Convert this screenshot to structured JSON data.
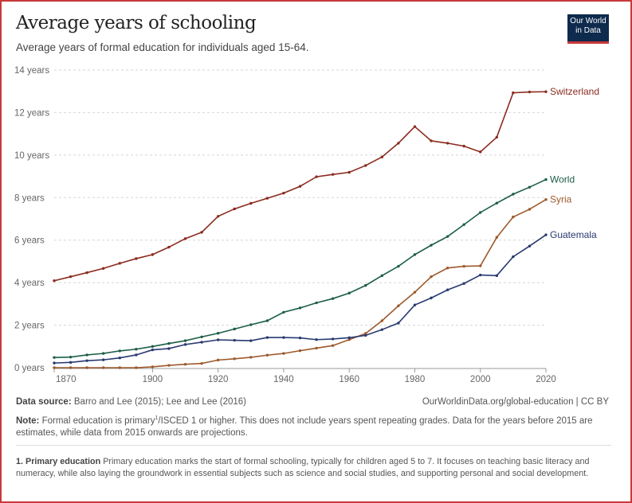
{
  "header": {
    "title": "Average years of schooling",
    "subtitle": "Average years of formal education for individuals aged 15-64.",
    "logo_text": "Our World in Data"
  },
  "footer": {
    "source_label": "Data source:",
    "source_text": "Barro and Lee (2015); Lee and Lee (2016)",
    "url": "OurWorldinData.org/global-education | CC BY",
    "note_label": "Note:",
    "note_text_a": "Formal education is primary",
    "note_sup": "1",
    "note_text_b": "/ISCED 1 or higher. This does not include years spent repeating grades. Data for the years before 2015 are estimates, while data from 2015 onwards are projections.",
    "footnote_label": "1. Primary education",
    "footnote_text": "Primary education marks the start of formal schooling, typically for children aged 5 to 7. It focuses on teaching basic literacy and numeracy, while also laying the groundwork in essential subjects such as science and social studies, and supporting personal and social development."
  },
  "chart_data": {
    "type": "line",
    "title": "Average years of schooling",
    "subtitle": "Average years of formal education for individuals aged 15-64.",
    "xlim": [
      1870,
      2020
    ],
    "ylim": [
      0,
      14
    ],
    "x_ticks": [
      1870,
      1900,
      1920,
      1940,
      1960,
      1980,
      2000,
      2020
    ],
    "y_ticks": [
      {
        "v": 0,
        "label": "0 years"
      },
      {
        "v": 2,
        "label": "2 years"
      },
      {
        "v": 4,
        "label": "4 years"
      },
      {
        "v": 6,
        "label": "6 years"
      },
      {
        "v": 8,
        "label": "8 years"
      },
      {
        "v": 10,
        "label": "10 years"
      },
      {
        "v": 12,
        "label": "12 years"
      },
      {
        "v": 14,
        "label": "14 years"
      }
    ],
    "grid": "horizontal dashed",
    "legend": "inline labels at line ends (right)",
    "x": [
      1870,
      1875,
      1880,
      1885,
      1890,
      1895,
      1900,
      1905,
      1910,
      1915,
      1920,
      1925,
      1930,
      1935,
      1940,
      1945,
      1950,
      1955,
      1960,
      1965,
      1970,
      1975,
      1980,
      1985,
      1990,
      1995,
      2000,
      2005,
      2010,
      2015,
      2020
    ],
    "series": [
      {
        "name": "Switzerland",
        "color": "#8a2b1f",
        "values": [
          4.09,
          4.28,
          4.47,
          4.67,
          4.91,
          5.13,
          5.32,
          5.67,
          6.07,
          6.37,
          7.12,
          7.47,
          7.73,
          7.97,
          8.21,
          8.53,
          8.98,
          9.09,
          9.19,
          9.51,
          9.91,
          10.56,
          11.34,
          10.67,
          10.56,
          10.42,
          10.15,
          10.84,
          12.93,
          12.97,
          12.98
        ]
      },
      {
        "name": "World",
        "color": "#1d5e47",
        "values": [
          0.48,
          0.5,
          0.6,
          0.67,
          0.79,
          0.87,
          1.0,
          1.14,
          1.27,
          1.45,
          1.62,
          1.82,
          2.02,
          2.21,
          2.61,
          2.81,
          3.05,
          3.25,
          3.51,
          3.87,
          4.33,
          4.77,
          5.32,
          5.76,
          6.17,
          6.73,
          7.3,
          7.74,
          8.16,
          8.49,
          8.85
        ]
      },
      {
        "name": "Syria",
        "color": "#9c5a2c",
        "values": [
          0,
          0,
          0,
          0,
          0,
          0,
          0.04,
          0.11,
          0.16,
          0.2,
          0.36,
          0.42,
          0.49,
          0.59,
          0.67,
          0.8,
          0.92,
          1.04,
          1.32,
          1.61,
          2.21,
          2.91,
          3.55,
          4.28,
          4.69,
          4.77,
          4.79,
          6.13,
          7.09,
          7.45,
          7.91
        ]
      },
      {
        "name": "Guatemala",
        "color": "#283a70",
        "values": [
          0.22,
          0.25,
          0.33,
          0.37,
          0.46,
          0.6,
          0.84,
          0.9,
          1.09,
          1.2,
          1.31,
          1.29,
          1.27,
          1.42,
          1.42,
          1.4,
          1.32,
          1.35,
          1.41,
          1.52,
          1.79,
          2.1,
          2.95,
          3.28,
          3.66,
          3.96,
          4.36,
          4.33,
          5.22,
          5.72,
          6.25
        ]
      }
    ]
  }
}
